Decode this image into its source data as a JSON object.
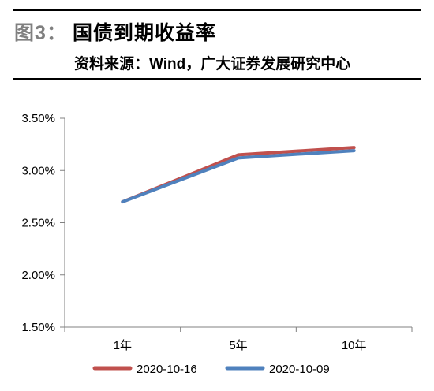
{
  "header": {
    "figure_label": "图3：",
    "title": "国债到期收益率",
    "source": "资料来源：Wind，广大证券发展研究中心"
  },
  "colors": {
    "series_2020_10_16": "#c0504d",
    "series_2020_10_09": "#4f81bd",
    "axis": "#808080"
  },
  "chart_data": {
    "type": "line",
    "categories": [
      "1年",
      "5年",
      "10年"
    ],
    "ylim": [
      1.5,
      3.5
    ],
    "yticks": [
      1.5,
      2.0,
      2.5,
      3.0,
      3.5
    ],
    "ytick_labels": [
      "1.50%",
      "2.00%",
      "2.50%",
      "3.00%",
      "3.50%"
    ],
    "grid": false,
    "legend_position": "bottom",
    "series": [
      {
        "name": "2020-10-16",
        "values": [
          2.7,
          3.15,
          3.22
        ],
        "color": "#c0504d"
      },
      {
        "name": "2020-10-09",
        "values": [
          2.7,
          3.12,
          3.19
        ],
        "color": "#4f81bd"
      }
    ],
    "title": "",
    "xlabel": "",
    "ylabel": ""
  }
}
